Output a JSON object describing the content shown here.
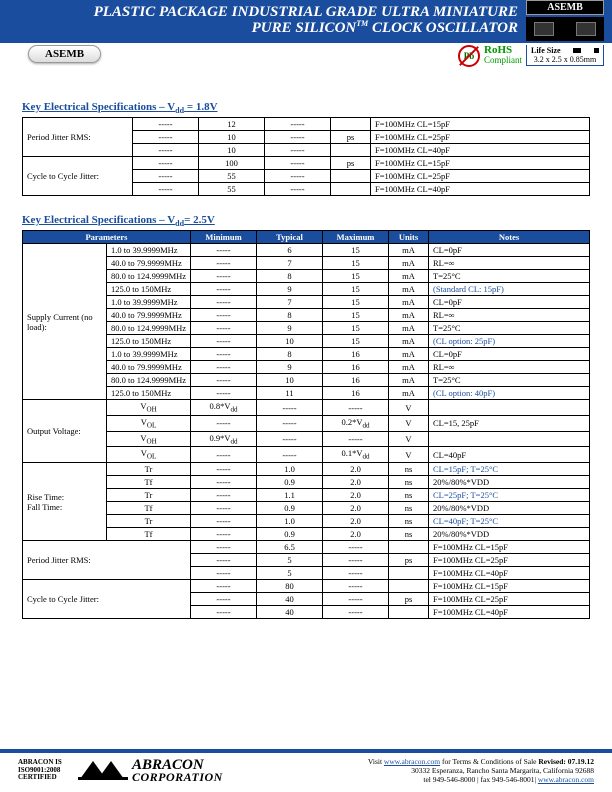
{
  "header": {
    "title_line1": "PLASTIC PACKAGE INDUSTRIAL GRADE ULTRA MINIATURE",
    "title_line2_pre": "PURE SILICON",
    "title_line2_tm": "TM",
    "title_line2_post": " CLOCK OSCILLATOR",
    "badge_label": "ASEMB",
    "lifesize_label": "Life Size",
    "lifesize_dim": "3.2 x 2.5 x 0.85mm",
    "part_label": "ASEMB",
    "rohs_bold": "RoHS",
    "rohs_sub": "Compliant",
    "pb_text": "Pb"
  },
  "sec1": {
    "title_pre": "Key Electrical Specifications – V",
    "title_sub": "dd",
    "title_post": "= 1.8V",
    "rows": [
      {
        "p": "Period Jitter RMS:",
        "span": 3,
        "c": [
          [
            "-----",
            "12",
            "-----",
            "",
            "F=100MHz CL=15pF"
          ],
          [
            "-----",
            "10",
            "-----",
            "ps",
            "F=100MHz CL=25pF"
          ],
          [
            "-----",
            "10",
            "-----",
            "",
            "F=100MHz CL=40pF"
          ]
        ]
      },
      {
        "p": "Cycle to Cycle Jitter:",
        "span": 3,
        "c": [
          [
            "-----",
            "100",
            "-----",
            "ps",
            "F=100MHz CL=15pF"
          ],
          [
            "-----",
            "55",
            "-----",
            "",
            "F=100MHz CL=25pF"
          ],
          [
            "-----",
            "55",
            "-----",
            "",
            "F=100MHz CL=40pF"
          ]
        ]
      }
    ]
  },
  "sec2": {
    "title_pre": "Key Electrical Specifications – V",
    "title_sub": "dd",
    "title_post": "= 2.5V",
    "headers": [
      "Parameters",
      "Minimum",
      "Typical",
      "Maximum",
      "Units",
      "Notes"
    ],
    "supply": {
      "label": "Supply Current (no load):",
      "groups": [
        {
          "rows": [
            [
              "1.0 to 39.9999MHz",
              "-----",
              "6",
              "15",
              "mA",
              "CL=0pF"
            ],
            [
              "40.0 to 79.9999MHz",
              "-----",
              "7",
              "15",
              "mA",
              "RL=∞"
            ],
            [
              "80.0 to 124.9999MHz",
              "-----",
              "8",
              "15",
              "mA",
              "T=25°C"
            ],
            [
              "125.0 to 150MHz",
              "-----",
              "9",
              "15",
              "mA",
              "(Standard CL: 15pF)"
            ]
          ],
          "last_blue": true
        },
        {
          "rows": [
            [
              "1.0 to 39.9999MHz",
              "-----",
              "7",
              "15",
              "mA",
              "CL=0pF"
            ],
            [
              "40.0 to 79.9999MHz",
              "-----",
              "8",
              "15",
              "mA",
              "RL=∞"
            ],
            [
              "80.0 to 124.9999MHz",
              "-----",
              "9",
              "15",
              "mA",
              "T=25°C"
            ],
            [
              "125.0 to 150MHz",
              "-----",
              "10",
              "15",
              "mA",
              "(CL option: 25pF)"
            ]
          ],
          "last_blue": true
        },
        {
          "rows": [
            [
              "1.0 to 39.9999MHz",
              "-----",
              "8",
              "16",
              "mA",
              "CL=0pF"
            ],
            [
              "40.0 to 79.9999MHz",
              "-----",
              "9",
              "16",
              "mA",
              "RL=∞"
            ],
            [
              "80.0 to 124.9999MHz",
              "-----",
              "10",
              "16",
              "mA",
              "T=25°C"
            ],
            [
              "125.0 to 150MHz",
              "-----",
              "11",
              "16",
              "mA",
              "(CL option: 40pF)"
            ]
          ],
          "last_blue": true
        }
      ]
    },
    "output": {
      "label": "Output Voltage:",
      "rows": [
        [
          "V",
          "OH",
          "0.8*V",
          "dd",
          "-----",
          "-----",
          "V",
          ""
        ],
        [
          "V",
          "OL",
          "-----",
          "",
          "-----",
          "0.2*V",
          "dd",
          "V",
          "CL=15, 25pF"
        ],
        [
          "V",
          "OH",
          "0.9*V",
          "dd",
          "-----",
          "-----",
          "V",
          ""
        ],
        [
          "V",
          "OL",
          "-----",
          "",
          "-----",
          "0.1*V",
          "dd",
          "V",
          "CL=40pF"
        ]
      ]
    },
    "rise": {
      "label": "Rise Time:\nFall Time:",
      "rows": [
        [
          "Tr",
          "-----",
          "1.0",
          "2.0",
          "ns",
          "CL=15pF; T=25°C",
          true
        ],
        [
          "Tf",
          "-----",
          "0.9",
          "2.0",
          "ns",
          "20%/80%*VDD",
          false
        ],
        [
          "Tr",
          "-----",
          "1.1",
          "2.0",
          "ns",
          "CL=25pF; T=25°C",
          true
        ],
        [
          "Tf",
          "-----",
          "0.9",
          "2.0",
          "ns",
          "20%/80%*VDD",
          false
        ],
        [
          "Tr",
          "-----",
          "1.0",
          "2.0",
          "ns",
          "CL=40pF; T=25°C",
          true
        ],
        [
          "Tf",
          "-----",
          "0.9",
          "2.0",
          "ns",
          "20%/80%*VDD",
          false
        ]
      ]
    },
    "jitter": [
      {
        "label": "Period Jitter RMS:",
        "rows": [
          [
            "-----",
            "6.5",
            "-----",
            "",
            "F=100MHz CL=15pF"
          ],
          [
            "-----",
            "5",
            "-----",
            "ps",
            "F=100MHz CL=25pF"
          ],
          [
            "-----",
            "5",
            "-----",
            "",
            "F=100MHz CL=40pF"
          ]
        ]
      },
      {
        "label": "Cycle to Cycle Jitter:",
        "rows": [
          [
            "-----",
            "80",
            "-----",
            "",
            "F=100MHz CL=15pF"
          ],
          [
            "-----",
            "40",
            "-----",
            "ps",
            "F=100MHz CL=25pF"
          ],
          [
            "-----",
            "40",
            "-----",
            "",
            "F=100MHz CL=40pF"
          ]
        ]
      }
    ]
  },
  "footer": {
    "cert1": "ABRACON IS",
    "cert2": "ISO9001:2008",
    "cert3": "CERTIFIED",
    "logo1": "ABRACON",
    "logo2": "CORPORATION",
    "visit_pre": "Visit ",
    "visit_url": "www.abracon.com",
    "visit_post": " for Terms & Conditions of Sale ",
    "revised": "Revised: 07.19.12",
    "addr": "30332 Esperanza, Rancho Santa Margarita, California 92688",
    "tel": "tel 949-546-8000 |  fax 949-546-8001|  ",
    "web": "www.abracon.com"
  },
  "col_widths": {
    "t1": [
      "110px",
      "66px",
      "66px",
      "66px",
      "40px",
      "auto"
    ],
    "t2": [
      "84px",
      "84px",
      "66px",
      "66px",
      "66px",
      "40px",
      "auto"
    ]
  }
}
